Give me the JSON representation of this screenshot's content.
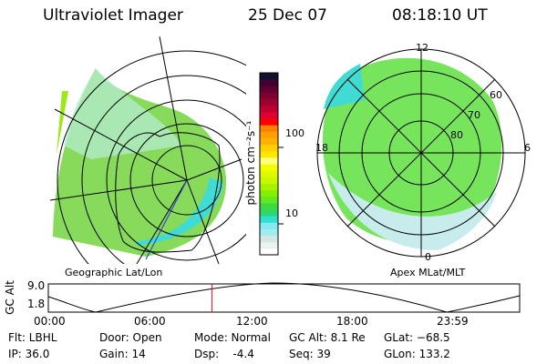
{
  "header": {
    "instrument": "Ultraviolet Imager",
    "date": "25 Dec 07",
    "time": "08:18:10 UT"
  },
  "left_panel": {
    "label": "Geographic Lat/Lon"
  },
  "right_panel": {
    "label": "Apex MLat/MLT",
    "mlt_labels": [
      "12",
      "6",
      "0",
      "18"
    ],
    "mlat_labels": [
      "60",
      "70",
      "80"
    ]
  },
  "colorbar": {
    "unit_label": "photon cm⁻²s⁻¹",
    "ticks": [
      "100",
      "10"
    ],
    "colors": [
      "#ffffff",
      "#e8f4ee",
      "#d6e6e6",
      "#9ceef2",
      "#88e8f0",
      "#2ee0d4",
      "#2ed870",
      "#40d840",
      "#60e820",
      "#84f000",
      "#a8f400",
      "#c8f800",
      "#e0f800",
      "#f4fc00",
      "#ffff80",
      "#ffe800",
      "#ffd000",
      "#ffb000",
      "#ffa000",
      "#ff8000",
      "#ff0000",
      "#e00030",
      "#c00030",
      "#a00030",
      "#800030",
      "#600030",
      "#400030",
      "#101030"
    ]
  },
  "altitude_plot": {
    "ylabel": "GC Alt",
    "y_ticks": [
      "9.0",
      "1.8"
    ],
    "x_ticks": [
      "00:00",
      "06:00",
      "12:00",
      "18:00",
      "23:59"
    ],
    "current_time_fraction": 0.347,
    "line_color": "#ff0000"
  },
  "info": {
    "flt": "Flt: LBHL",
    "ip": "IP: 36.0",
    "door": "Door: Open",
    "gain": "Gain: 14",
    "mode": "Mode: Normal",
    "dsp": "Dsp:    -4.4",
    "gcalt": "GC Alt: 8.1 Re",
    "seq": "Seq: 39",
    "glat": "GLat: −68.5",
    "glon": "GLon: 133.2"
  }
}
